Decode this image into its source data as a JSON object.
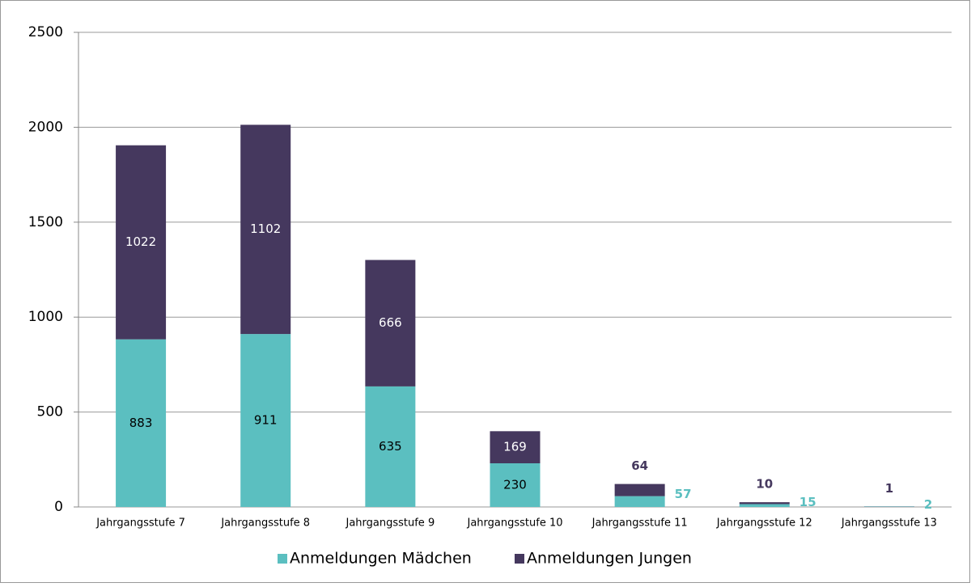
{
  "chart_data": {
    "type": "stacked_bar",
    "categories": [
      "Jahrgangsstufe 7",
      "Jahrgangsstufe 8",
      "Jahrgangsstufe 9",
      "Jahrgangsstufe 10",
      "Jahrgangsstufe 11",
      "Jahrgangsstufe 12",
      "Jahrgangsstufe 13"
    ],
    "series": [
      {
        "name": "Anmeldungen Mädchen",
        "color": "#5bbfc0",
        "values": [
          883,
          911,
          635,
          230,
          57,
          15,
          2
        ]
      },
      {
        "name": "Anmeldungen Jungen",
        "color": "#45385e",
        "values": [
          1022,
          1102,
          666,
          169,
          64,
          10,
          1
        ]
      }
    ],
    "ylim": [
      0,
      2500
    ],
    "yticks": [
      0,
      500,
      1000,
      1500,
      2000,
      2500
    ],
    "grid": true,
    "legend": "bottom"
  }
}
